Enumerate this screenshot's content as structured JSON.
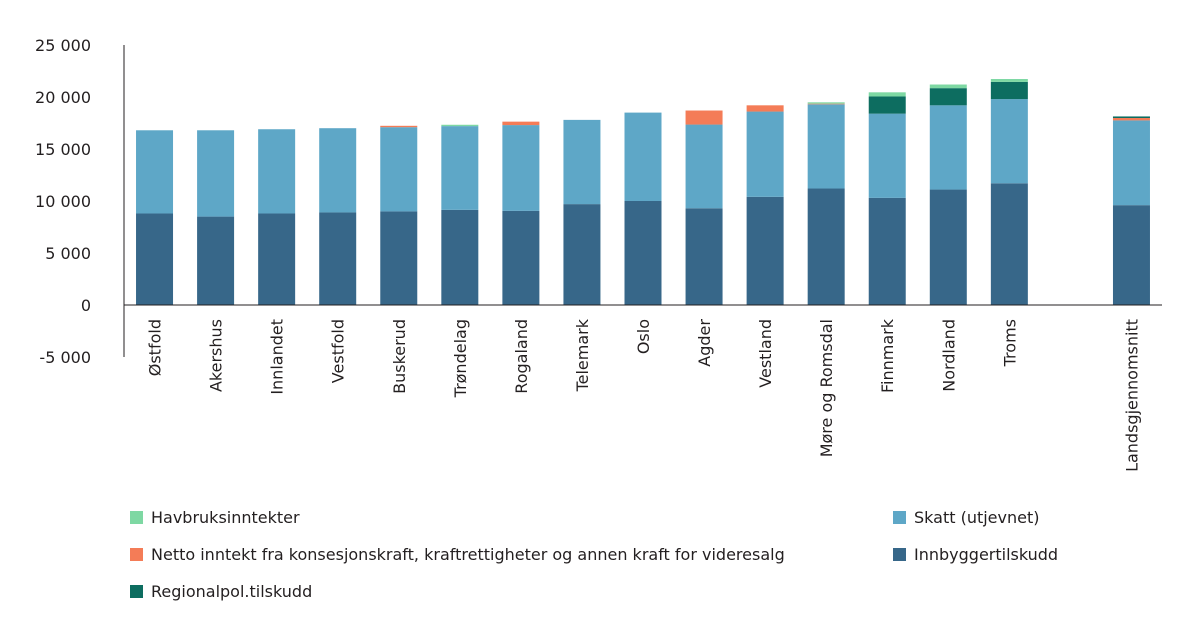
{
  "chart_data": {
    "type": "bar",
    "stacked": true,
    "categories": [
      "Østfold",
      "Akershus",
      "Innlandet",
      "Vestfold",
      "Buskerud",
      "Trøndelag",
      "Rogaland",
      "Telemark",
      "Oslo",
      "Agder",
      "Vestland",
      "Møre og Romsdal",
      "Finnmark",
      "Nordland",
      "Troms",
      "",
      "Landsgjennomsnitt"
    ],
    "series": [
      {
        "name": "Innbyggertilskudd",
        "color": "#376789",
        "values": [
          8800,
          8500,
          8800,
          8900,
          9000,
          9150,
          9050,
          9700,
          10000,
          9300,
          10400,
          11200,
          10300,
          11100,
          11700,
          null,
          9600
        ]
      },
      {
        "name": "Skatt (utjevnet)",
        "color": "#5ea7c7",
        "values": [
          8000,
          8300,
          8100,
          8100,
          8100,
          8050,
          8250,
          8100,
          8500,
          8050,
          8200,
          8100,
          8100,
          8100,
          8100,
          null,
          8150
        ]
      },
      {
        "name": "Netto inntekt fra konsesjonskraft, kraftrettigheter og annen kraft for videresalg",
        "color": "#f47c57",
        "values": [
          0,
          0,
          0,
          0,
          130,
          0,
          330,
          0,
          0,
          1350,
          600,
          60,
          0,
          0,
          0,
          null,
          230
        ]
      },
      {
        "name": "Regionalpol.tilskudd",
        "color": "#0d6d60",
        "values": [
          0,
          0,
          0,
          0,
          0,
          0,
          0,
          0,
          0,
          0,
          0,
          0,
          1650,
          1650,
          1650,
          null,
          150
        ]
      },
      {
        "name": "Havbruksinntekter",
        "color": "#7ed8a3",
        "values": [
          0,
          0,
          0,
          0,
          0,
          130,
          0,
          0,
          0,
          0,
          0,
          130,
          400,
          350,
          280,
          null,
          0
        ]
      }
    ],
    "ylim": [
      -5000,
      25000
    ],
    "yticks": [
      25000,
      20000,
      15000,
      10000,
      5000,
      0,
      -5000
    ],
    "ytick_labels": [
      "25 000",
      "20 000",
      "15 000",
      "10 000",
      "5 000",
      "0",
      "-5 000"
    ],
    "grid": false,
    "legend_position": "bottom"
  },
  "legend": {
    "items": [
      {
        "key": "havbruk",
        "label": "Havbruksinntekter",
        "color": "#7ed8a3"
      },
      {
        "key": "skatt",
        "label": "Skatt (utjevnet)",
        "color": "#5ea7c7"
      },
      {
        "key": "kraft",
        "label": "Netto inntekt fra konsesjonskraft, kraftrettigheter og annen kraft for videresalg",
        "color": "#f47c57"
      },
      {
        "key": "innbygger",
        "label": "Innbyggertilskudd",
        "color": "#376789"
      },
      {
        "key": "regional",
        "label": "Regionalpol.tilskudd",
        "color": "#0d6d60"
      }
    ]
  }
}
